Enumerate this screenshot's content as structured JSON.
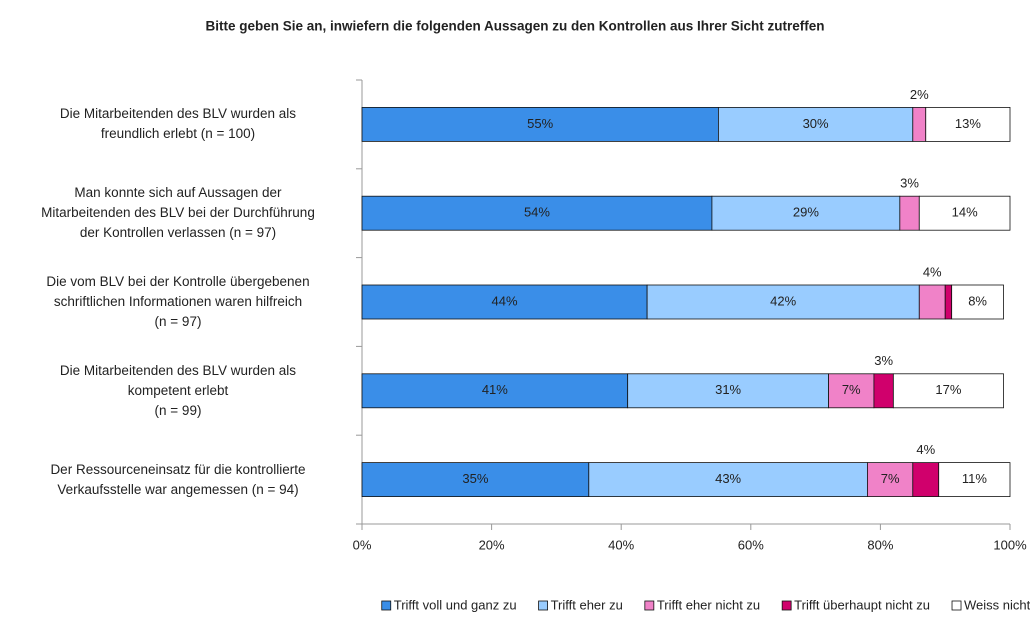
{
  "chart_data": {
    "type": "stacked-barh",
    "title": "Bitte geben Sie an, inwiefern die folgenden Aussagen zu den Kontrollen aus Ihrer Sicht zutreffen",
    "categories": [
      "Die Mitarbeitenden des BLV wurden als\nfreundlich erlebt (n = 100)",
      "Man konnte sich auf Aussagen der\nMitarbeitenden des BLV bei der Durchführung\nder Kontrollen verlassen (n = 97)",
      "Die vom BLV bei der Kontrolle übergebenen\nschriftlichen Informationen waren hilfreich\n(n = 97)",
      "Die Mitarbeitenden des BLV wurden als\nkompetent erlebt\n(n = 99)",
      "Der Ressourceneinsatz für die kontrollierte\nVerkaufsstelle war angemessen (n = 94)"
    ],
    "series": [
      {
        "name": "Trifft voll und ganz zu",
        "color": "#3a8ee8",
        "values": [
          55,
          54,
          44,
          41,
          35
        ],
        "value_labels": [
          "55%",
          "54%",
          "44%",
          "41%",
          "35%"
        ]
      },
      {
        "name": "Trifft eher zu",
        "color": "#99ccff",
        "values": [
          30,
          29,
          42,
          31,
          43
        ],
        "value_labels": [
          "30%",
          "29%",
          "42%",
          "31%",
          "43%"
        ]
      },
      {
        "name": "Trifft eher nicht zu",
        "color": "#f082c8",
        "values": [
          2,
          3,
          4,
          7,
          7
        ],
        "value_labels": [
          "2%",
          "3%",
          "4%",
          "7%",
          "7%"
        ]
      },
      {
        "name": "Trifft überhaupt nicht zu",
        "color": "#d0006c",
        "values": [
          0,
          0,
          1,
          3,
          4
        ],
        "value_labels": [
          null,
          null,
          null,
          "3%",
          "4%"
        ]
      },
      {
        "name": "Weiss nicht",
        "color": "#ffffff",
        "values": [
          13,
          14,
          8,
          17,
          11
        ],
        "value_labels": [
          "13%",
          "14%",
          "8%",
          "17%",
          "11%"
        ]
      }
    ],
    "xlim": [
      0,
      100
    ],
    "xticks": [
      {
        "value": 0,
        "label": "0%"
      },
      {
        "value": 20,
        "label": "20%"
      },
      {
        "value": 40,
        "label": "40%"
      },
      {
        "value": 60,
        "label": "60%"
      },
      {
        "value": 80,
        "label": "80%"
      },
      {
        "value": 100,
        "label": "100%"
      }
    ],
    "legend": "bottom"
  }
}
